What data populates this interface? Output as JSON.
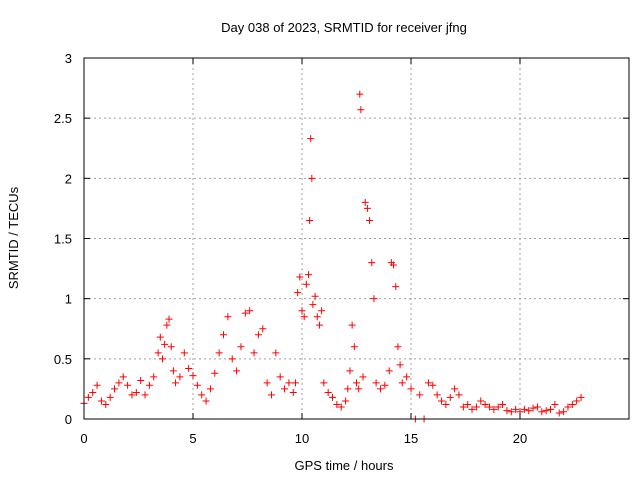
{
  "chart_data": {
    "type": "scatter",
    "title": "Day 038 of 2023, SRMTID for receiver jfng",
    "xlabel": "GPS time / hours",
    "ylabel": "SRMTID / TECUs",
    "xlim": [
      0,
      25
    ],
    "ylim": [
      0,
      3
    ],
    "xticks": [
      0,
      5,
      10,
      15,
      20
    ],
    "yticks": [
      0,
      0.5,
      1,
      1.5,
      2,
      2.5,
      3
    ],
    "xtick_labels": [
      "0",
      "5",
      "10",
      "15",
      "20"
    ],
    "ytick_labels": [
      "0",
      "0.5",
      "1",
      "1.5",
      "2",
      "2.5",
      "3"
    ],
    "grid": true,
    "marker": "plus",
    "series": [
      {
        "name": "jfng",
        "color": "#ff0000",
        "x": [
          0.0,
          0.2,
          0.4,
          0.6,
          0.8,
          1.0,
          1.2,
          1.4,
          1.6,
          1.8,
          2.0,
          2.2,
          2.4,
          2.6,
          2.8,
          3.0,
          3.2,
          3.4,
          3.5,
          3.6,
          3.7,
          3.8,
          3.9,
          4.0,
          4.1,
          4.2,
          4.4,
          4.6,
          4.8,
          5.0,
          5.2,
          5.4,
          5.6,
          5.8,
          6.0,
          6.2,
          6.4,
          6.6,
          6.8,
          7.0,
          7.2,
          7.4,
          7.6,
          7.8,
          8.0,
          8.2,
          8.4,
          8.6,
          8.8,
          9.0,
          9.2,
          9.4,
          9.6,
          9.7,
          9.8,
          9.9,
          10.0,
          10.1,
          10.2,
          10.3,
          10.35,
          10.4,
          10.45,
          10.5,
          10.6,
          10.7,
          10.8,
          10.9,
          11.0,
          11.2,
          11.4,
          11.6,
          11.8,
          12.0,
          12.1,
          12.2,
          12.3,
          12.4,
          12.5,
          12.6,
          12.65,
          12.7,
          12.8,
          12.9,
          13.0,
          13.1,
          13.2,
          13.3,
          13.4,
          13.6,
          13.8,
          14.0,
          14.1,
          14.2,
          14.3,
          14.4,
          14.5,
          14.6,
          14.8,
          15.0,
          15.2,
          15.4,
          15.6,
          15.8,
          16.0,
          16.2,
          16.4,
          16.6,
          16.8,
          17.0,
          17.2,
          17.4,
          17.6,
          17.8,
          18.0,
          18.2,
          18.4,
          18.6,
          18.8,
          19.0,
          19.2,
          19.4,
          19.6,
          19.8,
          20.0,
          20.2,
          20.4,
          20.6,
          20.8,
          21.0,
          21.2,
          21.4,
          21.6,
          21.8,
          22.0,
          22.2,
          22.4,
          22.6,
          22.8
        ],
        "y": [
          0.13,
          0.18,
          0.22,
          0.28,
          0.15,
          0.12,
          0.18,
          0.25,
          0.3,
          0.35,
          0.28,
          0.2,
          0.22,
          0.32,
          0.2,
          0.28,
          0.35,
          0.55,
          0.68,
          0.5,
          0.62,
          0.78,
          0.83,
          0.6,
          0.4,
          0.3,
          0.35,
          0.55,
          0.42,
          0.36,
          0.28,
          0.2,
          0.15,
          0.25,
          0.38,
          0.55,
          0.7,
          0.85,
          0.5,
          0.4,
          0.6,
          0.88,
          0.9,
          0.55,
          0.7,
          0.75,
          0.3,
          0.2,
          0.55,
          0.35,
          0.25,
          0.3,
          0.22,
          0.3,
          1.05,
          1.18,
          0.9,
          0.85,
          1.12,
          1.2,
          1.65,
          2.33,
          2.0,
          0.95,
          1.02,
          0.85,
          0.78,
          0.9,
          0.3,
          0.22,
          0.18,
          0.12,
          0.1,
          0.15,
          0.25,
          0.4,
          0.78,
          0.6,
          0.3,
          0.25,
          2.7,
          2.57,
          0.35,
          1.8,
          1.75,
          1.65,
          1.3,
          1.0,
          0.3,
          0.25,
          0.28,
          0.4,
          1.3,
          1.28,
          1.1,
          0.6,
          0.45,
          0.3,
          0.35,
          0.25,
          0.0,
          0.2,
          0.0,
          0.3,
          0.28,
          0.2,
          0.15,
          0.12,
          0.18,
          0.25,
          0.2,
          0.1,
          0.12,
          0.08,
          0.1,
          0.15,
          0.12,
          0.1,
          0.08,
          0.1,
          0.12,
          0.07,
          0.06,
          0.08,
          0.06,
          0.08,
          0.07,
          0.09,
          0.1,
          0.06,
          0.07,
          0.08,
          0.12,
          0.05,
          0.06,
          0.1,
          0.12,
          0.15,
          0.18
        ]
      }
    ]
  }
}
